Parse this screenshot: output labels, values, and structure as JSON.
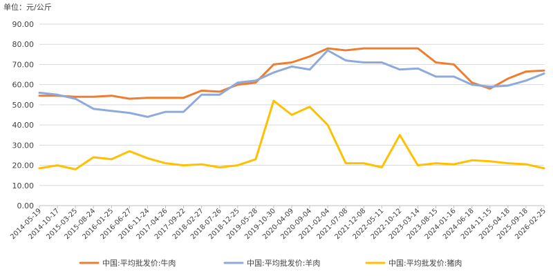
{
  "chart_data": {
    "type": "line",
    "unit_label": "单位：元/公斤",
    "ylim": [
      0,
      90
    ],
    "y_ticks": [
      "0.00",
      "10.00",
      "20.00",
      "30.00",
      "40.00",
      "50.00",
      "60.00",
      "70.00",
      "80.00",
      "90.00"
    ],
    "x_ticks": [
      "2014-05-19",
      "2014-10-17",
      "2015-03-25",
      "2015-08-24",
      "2016-01-25",
      "2016-06-27",
      "2016-11-24",
      "2017-04-26",
      "2017-09-22",
      "2018-02-27",
      "2018-07-26",
      "2018-12-25",
      "2019-05-28",
      "2019-10-30",
      "2020-04-09",
      "2020-09-04",
      "2021-02-04",
      "2021-07-08",
      "2021-12-08",
      "2022-05-11",
      "2022-10-12",
      "2023-03-14",
      "2023-08-15",
      "2024-01-16",
      "2024-06-18",
      "2024-11-15",
      "2025-04-18",
      "2025-09-18",
      "2026-02-25"
    ],
    "x": [
      "2014-05-19",
      "2014-10-17",
      "2015-03-25",
      "2015-08-24",
      "2016-01-25",
      "2016-06-27",
      "2016-11-24",
      "2017-04-26",
      "2017-09-22",
      "2018-02-27",
      "2018-07-26",
      "2018-12-25",
      "2019-05-28",
      "2019-10-30",
      "2020-04-09",
      "2020-09-04",
      "2021-02-04",
      "2021-07-08",
      "2021-12-08",
      "2022-05-11",
      "2022-10-12",
      "2023-03-14",
      "2023-08-15",
      "2024-01-16",
      "2024-06-18",
      "2024-11-15",
      "2025-04-18",
      "2025-09-18",
      "2026-02-25"
    ],
    "grid": "horizontal",
    "legend_position": "bottom",
    "series": [
      {
        "name": "中国:平均批发价:牛肉",
        "color": "#ed7d31",
        "values": [
          54.5,
          54.5,
          54.0,
          54.0,
          54.5,
          53.0,
          53.5,
          53.5,
          53.5,
          57.0,
          56.5,
          60.0,
          61.0,
          70.0,
          71.0,
          74.0,
          78.0,
          77.0,
          78.0,
          78.0,
          78.0,
          78.0,
          71.0,
          70.0,
          61.0,
          58.0,
          63.0,
          66.5,
          67.0
        ]
      },
      {
        "name": "中国:平均批发价:羊肉",
        "color": "#8ea9db",
        "values": [
          56.0,
          55.0,
          53.0,
          48.0,
          47.0,
          46.0,
          44.0,
          46.5,
          46.5,
          55.0,
          55.0,
          61.0,
          62.0,
          66.0,
          69.0,
          67.5,
          77.0,
          72.0,
          71.0,
          71.0,
          67.5,
          68.0,
          64.0,
          64.0,
          60.0,
          59.0,
          59.5,
          62.0,
          65.5
        ]
      },
      {
        "name": "中国:平均批发价:猪肉",
        "color": "#ffc000",
        "values": [
          18.5,
          20.0,
          18.0,
          24.0,
          23.0,
          27.0,
          23.5,
          21.0,
          20.0,
          20.5,
          19.0,
          20.0,
          23.0,
          52.0,
          45.0,
          49.0,
          40.0,
          21.0,
          21.0,
          19.0,
          35.0,
          20.0,
          21.0,
          20.5,
          22.5,
          22.0,
          21.0,
          20.5,
          18.5
        ]
      }
    ]
  }
}
